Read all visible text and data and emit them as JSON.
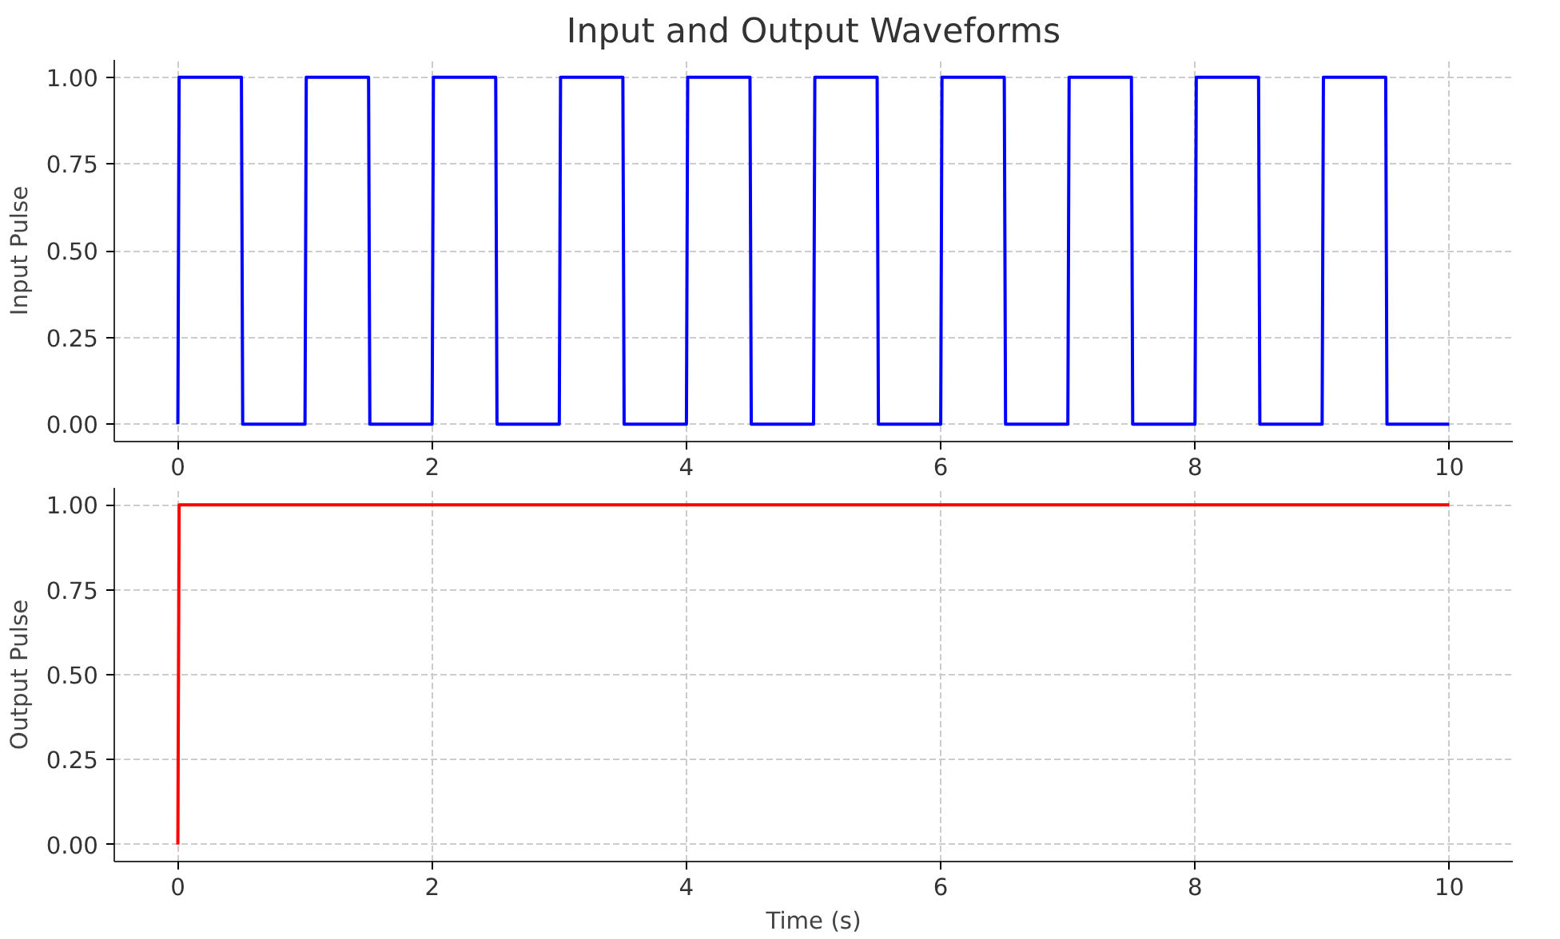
{
  "chart_data": [
    {
      "type": "line",
      "title": "Input and Output Waveforms",
      "ylabel": "Input Pulse",
      "x": [
        0,
        0.01,
        0.5,
        0.51,
        1.0,
        1.01,
        1.5,
        1.51,
        2.0,
        2.01,
        2.5,
        2.51,
        3.0,
        3.01,
        3.5,
        3.51,
        4.0,
        4.01,
        4.5,
        4.51,
        5.0,
        5.01,
        5.5,
        5.51,
        6.0,
        6.01,
        6.5,
        6.51,
        7.0,
        7.01,
        7.5,
        7.51,
        8.0,
        8.01,
        8.5,
        8.51,
        9.0,
        9.01,
        9.5,
        9.51,
        10.0
      ],
      "series": [
        {
          "color": "#0000ff",
          "values": [
            0,
            1,
            1,
            0,
            0,
            1,
            1,
            0,
            0,
            1,
            1,
            0,
            0,
            1,
            1,
            0,
            0,
            1,
            1,
            0,
            0,
            1,
            1,
            0,
            0,
            1,
            1,
            0,
            0,
            1,
            1,
            0,
            0,
            1,
            1,
            0,
            0,
            1,
            1,
            0,
            0
          ]
        }
      ],
      "xlim": [
        -0.5,
        10.5
      ],
      "xticks": [
        0,
        2,
        4,
        6,
        8,
        10
      ],
      "ylim": [
        -0.05,
        1.05
      ],
      "yticks": [
        {
          "value": 0,
          "label": "0.00"
        },
        {
          "value": 0.25,
          "label": "0.25"
        },
        {
          "value": 0.5,
          "label": "0.50"
        },
        {
          "value": 0.75,
          "label": "0.75"
        },
        {
          "value": 1,
          "label": "1.00"
        }
      ],
      "grid": true,
      "marker": "none",
      "line_style": "solid"
    },
    {
      "type": "line",
      "xlabel": "Time (s)",
      "ylabel": "Output Pulse",
      "x": [
        0,
        0.01,
        10.0
      ],
      "series": [
        {
          "color": "#ff0000",
          "values": [
            0,
            1,
            1
          ]
        }
      ],
      "xlim": [
        -0.5,
        10.5
      ],
      "xticks": [
        0,
        2,
        4,
        6,
        8,
        10
      ],
      "ylim": [
        -0.05,
        1.05
      ],
      "yticks": [
        {
          "value": 0,
          "label": "0.00"
        },
        {
          "value": 0.25,
          "label": "0.25"
        },
        {
          "value": 0.5,
          "label": "0.50"
        },
        {
          "value": 0.75,
          "label": "0.75"
        },
        {
          "value": 1,
          "label": "1.00"
        }
      ],
      "grid": true,
      "marker": "none",
      "line_style": "solid"
    }
  ]
}
